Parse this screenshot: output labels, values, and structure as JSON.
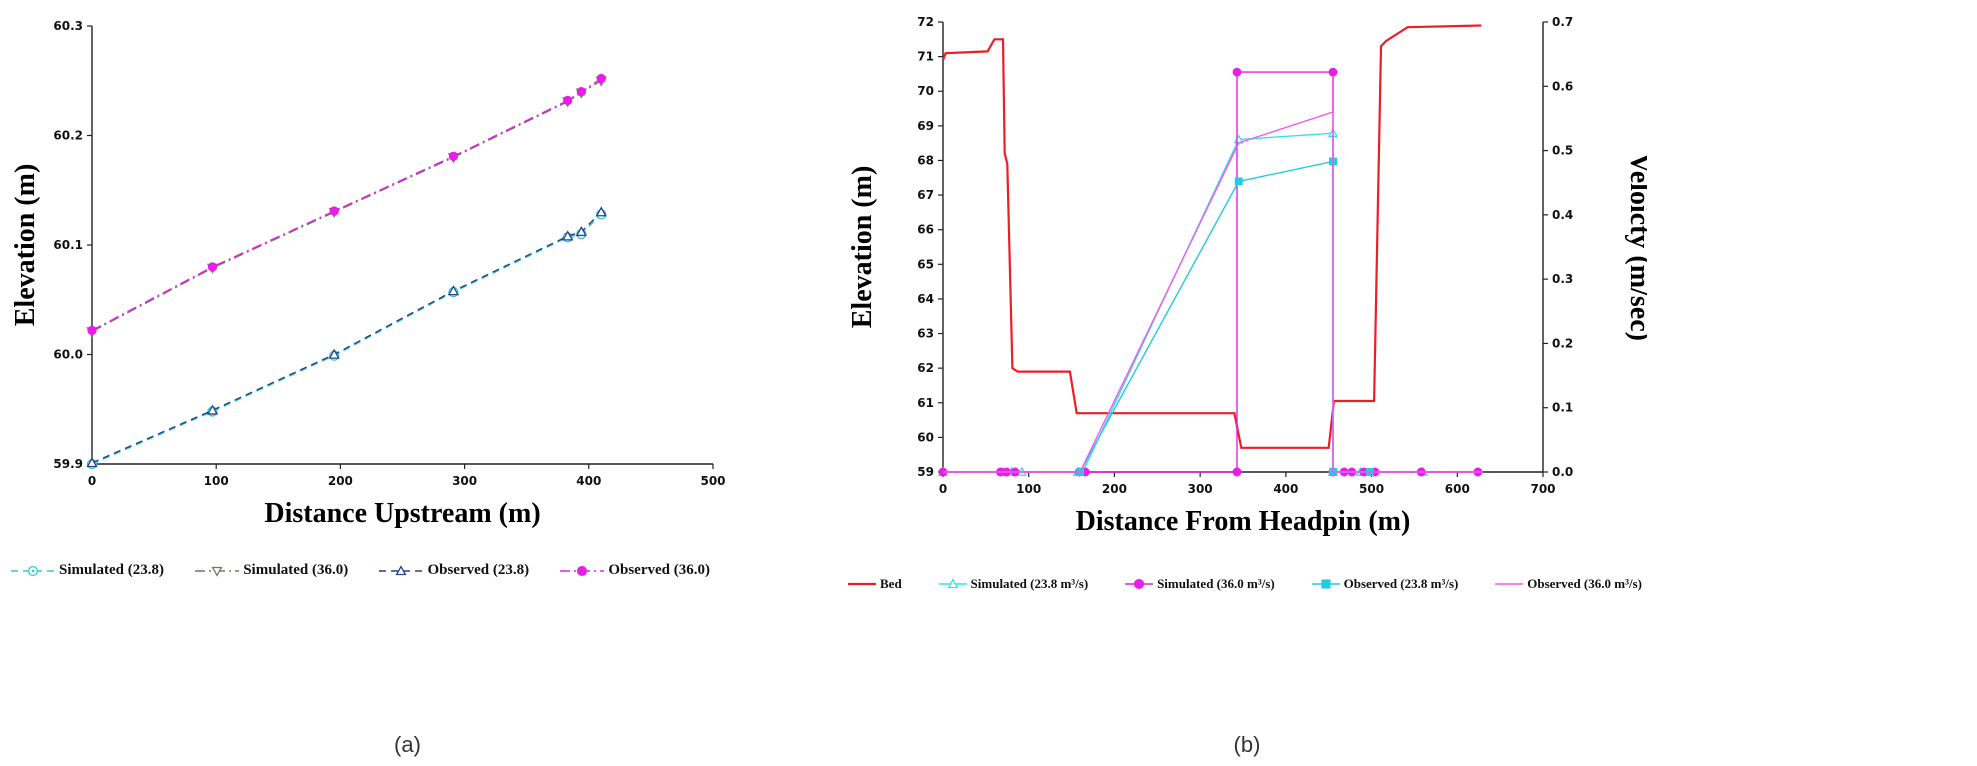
{
  "figure": {
    "caption_a": "(a)",
    "caption_b": "(b)"
  },
  "chart_data": [
    {
      "id": "chart-a",
      "type": "line",
      "title": "",
      "xlabel": "Distance Upstream (m)",
      "ylabel": "Elevation (m)",
      "xlim": [
        0,
        500
      ],
      "ylim": [
        59.9,
        60.3
      ],
      "xticks": [
        0,
        100,
        200,
        300,
        400,
        500
      ],
      "xtick_labels": [
        "0",
        "100",
        "200",
        "300",
        "400",
        "500"
      ],
      "yticks": [
        59.9,
        60.0,
        60.1,
        60.2,
        60.3
      ],
      "ytick_labels": [
        "59.9",
        "60.0",
        "60.1",
        "60.2",
        "60.3"
      ],
      "grid": false,
      "axes": [
        "left",
        "bottom"
      ],
      "legend_position": "bottom",
      "series": [
        {
          "name": "Simulated (23.8)",
          "color": "#2FC9CE",
          "line": "dashed",
          "marker": "circle-dot",
          "mfill": "open",
          "msize": 4.5,
          "axis": "left",
          "x": [
            0,
            97,
            195,
            291,
            383,
            394,
            410
          ],
          "y": [
            59.9,
            59.948,
            59.999,
            60.057,
            60.107,
            60.11,
            60.128
          ]
        },
        {
          "name": "Simulated (36.0)",
          "color": "#77775E",
          "line": "dashdot",
          "marker": "triangle-down",
          "mfill": "open",
          "msize": 4.5,
          "axis": "left",
          "x": [
            0,
            97,
            195,
            291,
            383,
            394,
            410
          ],
          "y": [
            60.021,
            60.079,
            60.13,
            60.18,
            60.231,
            60.239,
            60.25
          ]
        },
        {
          "name": "Observed (23.8)",
          "color": "#27408B",
          "line": "dashed",
          "marker": "triangle-up",
          "mfill": "open",
          "msize": 4.5,
          "axis": "left",
          "x": [
            0,
            97,
            195,
            291,
            383,
            394,
            410
          ],
          "y": [
            59.901,
            59.949,
            60.0,
            60.058,
            60.108,
            60.112,
            60.13
          ]
        },
        {
          "name": "Observed (36.0)",
          "color": "#E61EE6",
          "line": "dashdot",
          "marker": "circle",
          "mfill": "#E61EE6",
          "msize": 4,
          "axis": "left",
          "x": [
            0,
            97,
            195,
            291,
            383,
            394,
            410
          ],
          "y": [
            60.022,
            60.08,
            60.131,
            60.181,
            60.232,
            60.24,
            60.252
          ]
        }
      ]
    },
    {
      "id": "chart-b",
      "type": "line",
      "title": "",
      "xlabel": "Distance From Headpin (m)",
      "ylabel": "Elevation (m)",
      "y2label": "Veloicty (m/sec)",
      "xlim": [
        0,
        700
      ],
      "ylim": [
        59,
        72
      ],
      "y2lim": [
        0,
        0.7
      ],
      "xticks": [
        0,
        100,
        200,
        300,
        400,
        500,
        600,
        700
      ],
      "xtick_labels": [
        "0",
        "100",
        "200",
        "300",
        "400",
        "500",
        "600",
        "700"
      ],
      "yticks": [
        59,
        60,
        61,
        62,
        63,
        64,
        65,
        66,
        67,
        68,
        69,
        70,
        71,
        72
      ],
      "ytick_labels": [
        "59",
        "60",
        "61",
        "62",
        "63",
        "64",
        "65",
        "66",
        "67",
        "68",
        "69",
        "70",
        "71",
        "72"
      ],
      "y2ticks": [
        0,
        0.1,
        0.2,
        0.3,
        0.4,
        0.5,
        0.6,
        0.7
      ],
      "y2tick_labels": [
        "0.0",
        "0.1",
        "0.2",
        "0.3",
        "0.4",
        "0.5",
        "0.6",
        "0.7"
      ],
      "grid": false,
      "axes": [
        "left",
        "bottom",
        "right"
      ],
      "legend_position": "bottom",
      "series": [
        {
          "name": "Bed",
          "color": "#EE1C25",
          "line": "solid",
          "marker": "none",
          "width": 2.2,
          "axis": "left",
          "x": [
            0,
            3,
            52,
            60,
            70,
            72,
            75,
            81,
            87,
            93,
            148,
            156,
            162,
            340,
            348,
            450,
            456,
            503,
            511,
            517,
            542,
            628
          ],
          "y": [
            70.9,
            71.1,
            71.15,
            71.5,
            71.5,
            68.2,
            67.9,
            62.0,
            61.9,
            61.9,
            61.9,
            60.7,
            60.7,
            60.7,
            59.7,
            59.7,
            61.05,
            61.05,
            71.3,
            71.45,
            71.85,
            71.9
          ]
        },
        {
          "name": "Simulated (23.8 m³/s)",
          "color": "#35E0E8",
          "line": "solid",
          "marker": "triangle-up",
          "mfill": "open",
          "msize": 4,
          "axis": "right",
          "x": [
            0,
            70,
            80,
            92,
            157,
            163,
            345,
            455,
            455,
            487,
            560
          ],
          "y": [
            0,
            0,
            0,
            0,
            0,
            0,
            0.517,
            0.527,
            0,
            0,
            0
          ]
        },
        {
          "name": "Simulated (36.0 m³/s)",
          "color": "#E61EE6",
          "line": "solid",
          "marker": "circle",
          "mfill": "#E61EE6",
          "msize": 3.8,
          "axis": "right",
          "x": [
            0,
            67,
            74,
            84,
            159,
            166,
            343,
            343,
            455,
            455,
            468,
            477,
            491,
            504,
            558,
            624
          ],
          "y": [
            0,
            0,
            0,
            0,
            0,
            0,
            0,
            0.622,
            0.622,
            0,
            0,
            0,
            0,
            0,
            0,
            0
          ]
        },
        {
          "name": "Observed (23.8 m³/s)",
          "color": "#24CBE0",
          "line": "solid",
          "marker": "square",
          "mfill": "#24CBE0",
          "msize": 3.8,
          "axis": "right",
          "x": [
            160,
            345,
            455,
            455,
            498
          ],
          "y": [
            0,
            0.452,
            0.483,
            0,
            0
          ]
        },
        {
          "name": "Observed (36.0 m³/s)",
          "color": "#F25AEF",
          "line": "solid",
          "marker": "none",
          "axis": "right",
          "x": [
            0,
            160,
            345,
            455,
            455,
            630
          ],
          "y": [
            0,
            0,
            0.512,
            0.56,
            0,
            0
          ]
        }
      ]
    }
  ]
}
